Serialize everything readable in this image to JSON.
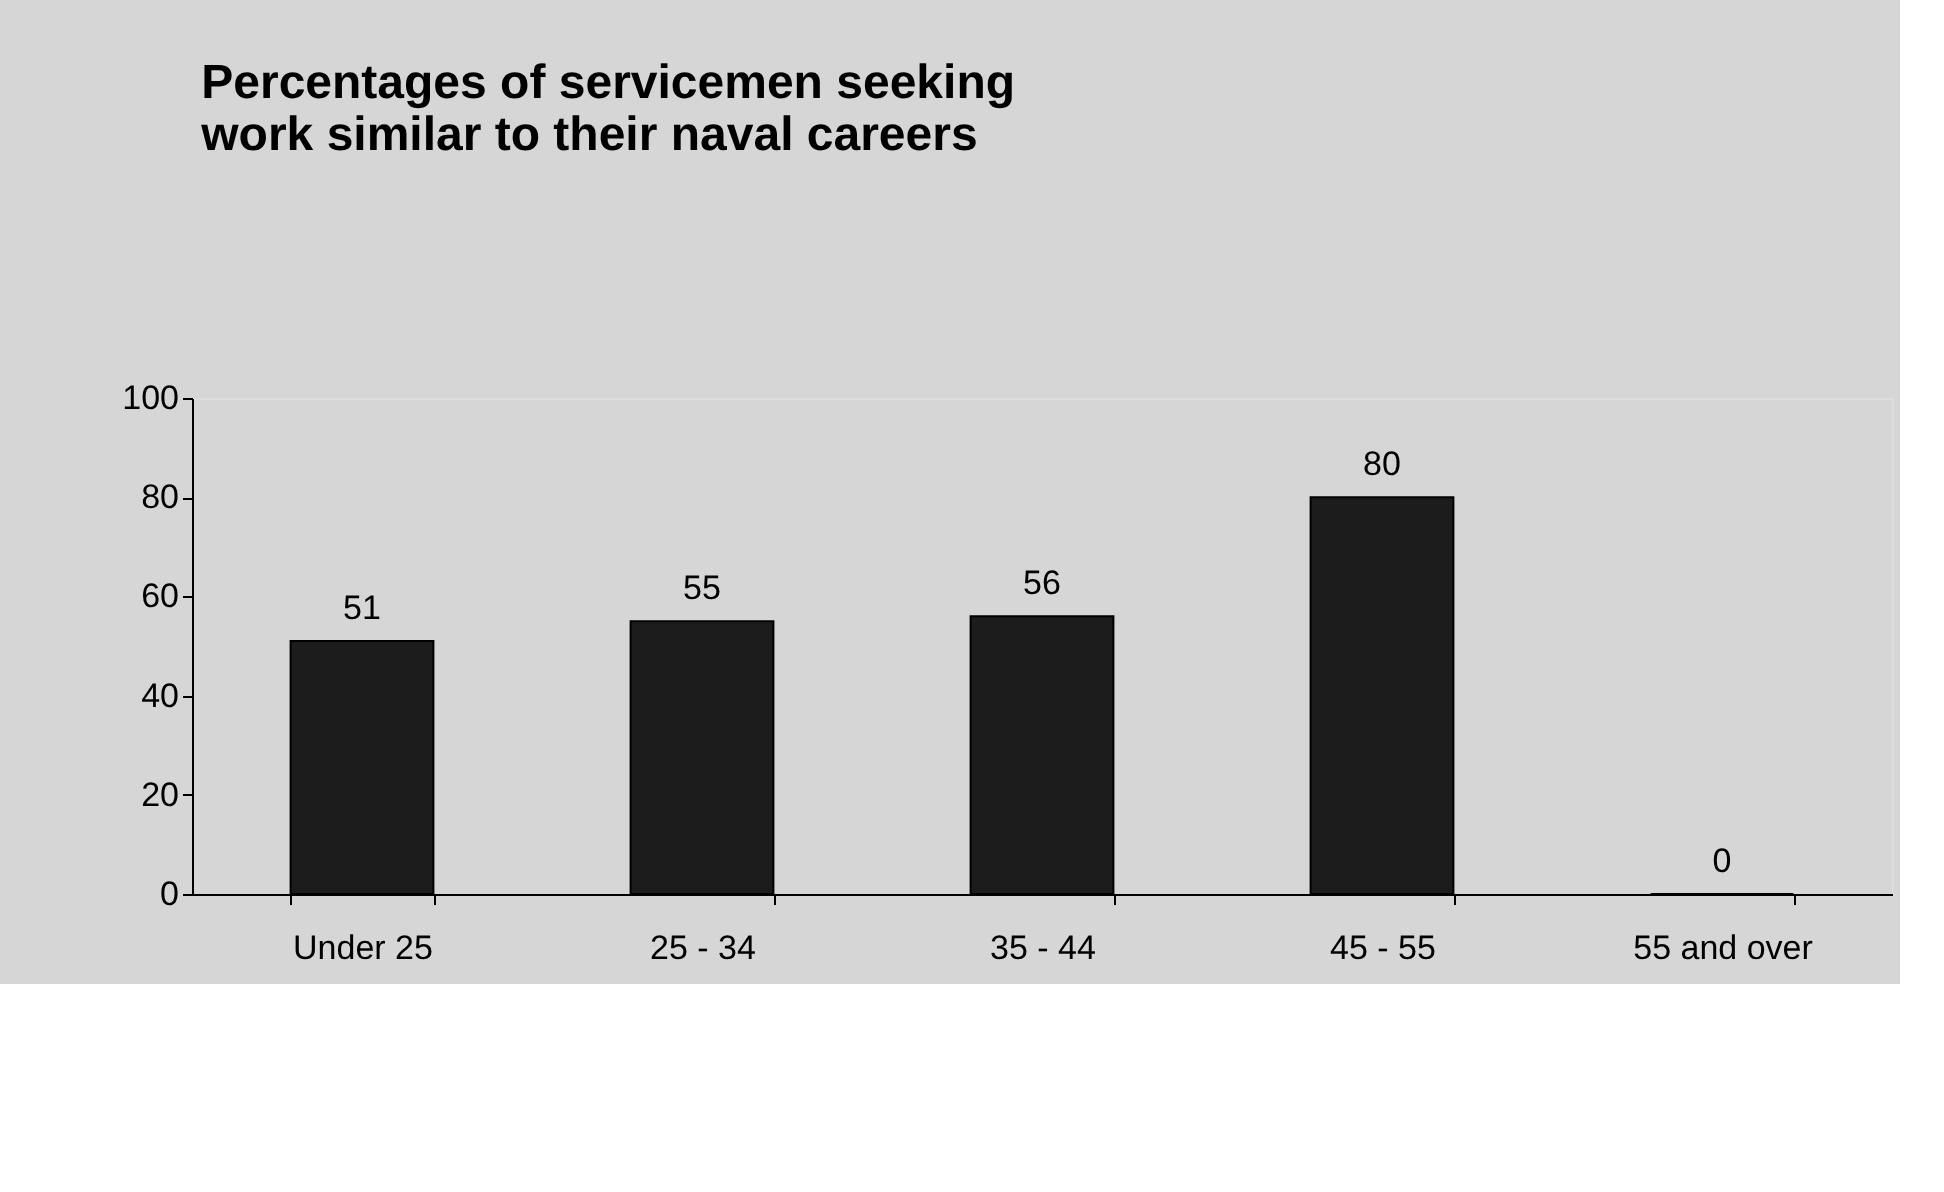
{
  "chart_data": {
    "type": "bar",
    "title": [
      "Percentages of servicemen seeking",
      "work similar to their naval careers"
    ],
    "categories": [
      "Under 25",
      "25 - 34",
      "35 - 44",
      "45 - 55",
      "55 and over"
    ],
    "values": [
      51,
      55,
      56,
      80,
      0
    ],
    "color": "#1c1c1c",
    "ylim": [
      0,
      100
    ],
    "yticks": [
      0,
      20,
      40,
      60,
      80,
      100
    ],
    "grid": false,
    "data_labels": true
  }
}
